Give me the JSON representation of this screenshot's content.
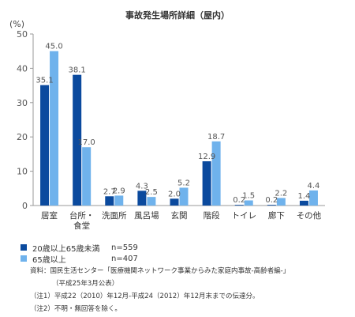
{
  "chart_data": {
    "type": "bar",
    "title": "事故発生場所詳細（屋内）",
    "ylabel": "(%)",
    "ylim": [
      0,
      50
    ],
    "yticks": [
      0,
      10,
      20,
      30,
      40,
      50
    ],
    "grid": false,
    "categories": [
      "居室",
      "台所・食堂",
      "洗面所",
      "風呂場",
      "玄関",
      "階段",
      "トイレ",
      "廊下",
      "その他"
    ],
    "category_lines": [
      [
        "居室"
      ],
      [
        "台所・",
        "食堂"
      ],
      [
        "洗面所"
      ],
      [
        "風呂場"
      ],
      [
        "玄関"
      ],
      [
        "階段"
      ],
      [
        "トイレ"
      ],
      [
        "廊下"
      ],
      [
        "その他"
      ]
    ],
    "series": [
      {
        "name": "20歳以上65歳未満",
        "color": "#0b4a9e",
        "values": [
          35.1,
          38.1,
          2.7,
          4.3,
          2.0,
          12.9,
          0.2,
          0.2,
          1.4
        ]
      },
      {
        "name": "65歳以上",
        "color": "#6fb2ec",
        "values": [
          45.0,
          17.0,
          2.9,
          2.5,
          5.2,
          18.7,
          1.5,
          2.2,
          4.4
        ]
      }
    ],
    "value_labels": [
      [
        "35.1",
        "38.1",
        "2.7",
        "4.3",
        "2.0",
        "12.9",
        "0.2",
        "0.2",
        "1.4"
      ],
      [
        "45.0",
        "17.0",
        "2.9",
        "2.5",
        "5.2",
        "18.7",
        "1.5",
        "2.2",
        "4.4"
      ]
    ],
    "legend": [
      {
        "label": "20歳以上65歳未満",
        "n": "n=559"
      },
      {
        "label": "65歳以上",
        "n": "n=407"
      }
    ],
    "legend_position": "bottom-left"
  },
  "notes": {
    "source_line1": "資料：国民生活センター「医療機関ネットワーク事業からみた家庭内事故-高齢者編-」",
    "source_line2": "（平成25年3月公表）",
    "note1": "（注1）平成22（2010）年12月-平成24（2012）年12月末までの伝達分。",
    "note2": "（注2）不明・無回答を除く。"
  }
}
